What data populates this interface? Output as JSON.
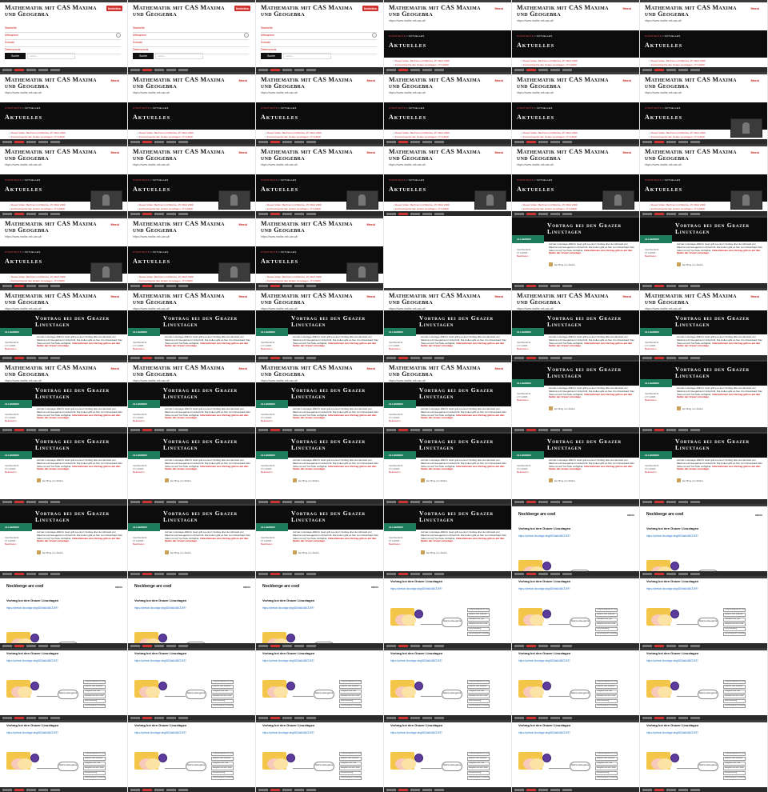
{
  "site": {
    "title": "Mathematik mit CAS Maxima und Geogebra",
    "subtitle": "https://www.mathe-mit-cas.at/",
    "menu_label": "Menü",
    "close_label": "Schließen",
    "search_label": "Suche",
    "search_placeholder": "Suche",
    "menu_items": [
      "Startseite",
      "Mitmachen",
      "Kontakt",
      "Datenschutz"
    ],
    "breadcrumb_home": "STARTSEITE",
    "breadcrumb_sep": "/",
    "breadcrumb_current": "AKTUELLES",
    "section_title": "Aktuelles",
    "news": [
      "Neues Video: Rechnen mit Maxima, 15. März 2020",
      "Kurzvortrag bei den Grazer Linuxtagen, 17.3.2020",
      "Neuigkeiten von Maxima und Geogebra, 3.1.2020",
      "Vortrag in der Pädagogischen Hochschule Steiermark",
      "Wortmeldung bei der Kolloquiumssitzung"
    ]
  },
  "post": {
    "title": "Vortrag bei den Grazer Linuxtagen",
    "category": "ALLGEMEIN",
    "body": "Auf der Linuxtage 2020 in Graz gibt es einen Vortrag über den Einsatz von Maxima und Geogebra im Unterricht. Die Folien gibt es hier zum Download. Das Video ist auf YouTube verfügbar.",
    "red_note": "Informationen zum Vortrag gibt es auf den Seiten der Grazer Linuxtage.",
    "meta_lines": [
      "Veröffentlicht",
      "17.3.2020"
    ],
    "meta_red": "Bearbeiten",
    "author": "Ein Blog von Mathe"
  },
  "slides": {
    "header": "Nockberge are cool",
    "logo_text": "MENU",
    "subheading": "Vortrag bei den Grazer Linuxtagen",
    "link": "https://pretalx.linuxtage.at/glt20/talk/ABCDEF/",
    "center_label": "Maxima &Geogebra",
    "boxes": [
      "Computeralgebra im Unterricht",
      "Maxima: freie Software",
      "Geogebra und CAS",
      "Beispiele aus der Praxis",
      "Kurzvorstellung",
      "Vernetzung der Lehrkräfte"
    ]
  },
  "taskbar": {
    "items": [
      "Aktivitäten",
      "Firefox",
      "Dateien",
      "Terminal",
      "Präsentation"
    ]
  }
}
